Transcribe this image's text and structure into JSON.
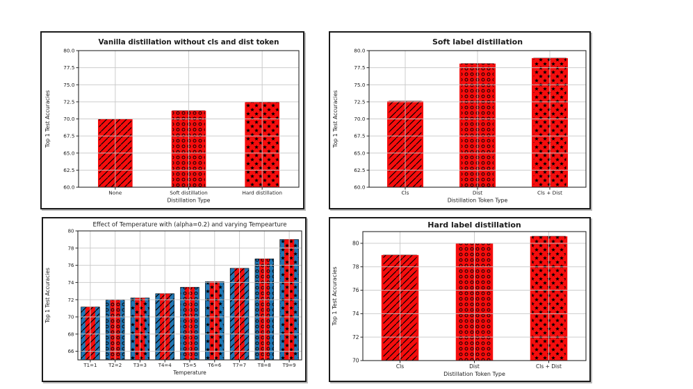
{
  "figure": {
    "description": "2x2 grid of matplotlib bar charts about knowledge distillation experiments",
    "background": "#ffffff"
  },
  "colors": {
    "bar_fill_blue": "#1f77b4",
    "bar_inner_red": "#f50d0d",
    "hatch_black": "#000000",
    "gridline": "#c7c7c7",
    "spine": "#262626",
    "box_border": "#1a1a1a"
  },
  "chart_data": [
    {
      "type": "bar",
      "panel": "top-left",
      "title": "Vanilla distillation without cls and dist token",
      "xlabel": "Distillation Type",
      "ylabel": "Top 1 Test Accuracies",
      "categories": [
        "None",
        "Soft distillation",
        "Hard distillation"
      ],
      "values": [
        70.0,
        71.2,
        72.45
      ],
      "bar_hatches": [
        "/",
        "o",
        "*"
      ],
      "bar_style": "wide blue hatched bar with centered solid red inner bar",
      "yticks": [
        "60.0",
        "62.5",
        "65.0",
        "67.5",
        "70.0",
        "72.5",
        "75.0",
        "77.5",
        "80.0"
      ],
      "ylim": [
        60,
        80
      ],
      "grid": true,
      "legend": null
    },
    {
      "type": "bar",
      "panel": "top-right",
      "title": "Soft label distillation",
      "xlabel": "Distillation Token Type",
      "ylabel": "Top 1 Test Accuracies",
      "categories": [
        "Cls",
        "Dist",
        "Cls + Dist"
      ],
      "values": [
        72.6,
        78.1,
        78.9
      ],
      "bar_hatches": [
        "/",
        "o",
        "*"
      ],
      "bar_style": "wide blue hatched bar with centered solid red inner bar",
      "yticks": [
        "60.0",
        "62.5",
        "65.0",
        "67.5",
        "70.0",
        "72.5",
        "75.0",
        "77.5",
        "80.0"
      ],
      "ylim": [
        60,
        80
      ],
      "grid": true,
      "legend": null
    },
    {
      "type": "bar",
      "panel": "bottom-left",
      "title": "Effect of Temperature with  (alpha=0.2) and varying Tempearture",
      "xlabel": "Temperature",
      "ylabel": "Top 1 Test Accuracies",
      "categories": [
        "T1=1",
        "T2=2",
        "T3=3",
        "T4=4",
        "T5=5",
        "T6=6",
        "T7=7",
        "T8=8",
        "T9=9"
      ],
      "values": [
        71.15,
        72.0,
        72.2,
        72.7,
        73.45,
        74.1,
        75.65,
        76.75,
        79.0
      ],
      "bar_hatches": [
        "/",
        "o",
        "*",
        "/",
        "o",
        "*",
        "/",
        "o",
        "*"
      ],
      "bar_style": "wide blue hatched bar with centered solid red inner bar",
      "yticks": [
        "66",
        "68",
        "70",
        "72",
        "74",
        "76",
        "78",
        "80"
      ],
      "ylim": [
        65,
        80
      ],
      "grid": true,
      "legend": null
    },
    {
      "type": "bar",
      "panel": "bottom-right",
      "title": "Hard label distillation",
      "xlabel": "Distillation Token Type",
      "ylabel": "Top 1 Test Accuracies",
      "categories": [
        "Cls",
        "Dist",
        "Cls + Dist"
      ],
      "values": [
        79.0,
        80.0,
        80.6
      ],
      "bar_hatches": [
        "/",
        "o",
        "*"
      ],
      "bar_style": "wide blue hatched bar with centered solid red inner bar",
      "yticks": [
        "70",
        "72",
        "74",
        "76",
        "78",
        "80"
      ],
      "ylim": [
        70,
        81
      ],
      "grid": true,
      "legend": null
    }
  ]
}
